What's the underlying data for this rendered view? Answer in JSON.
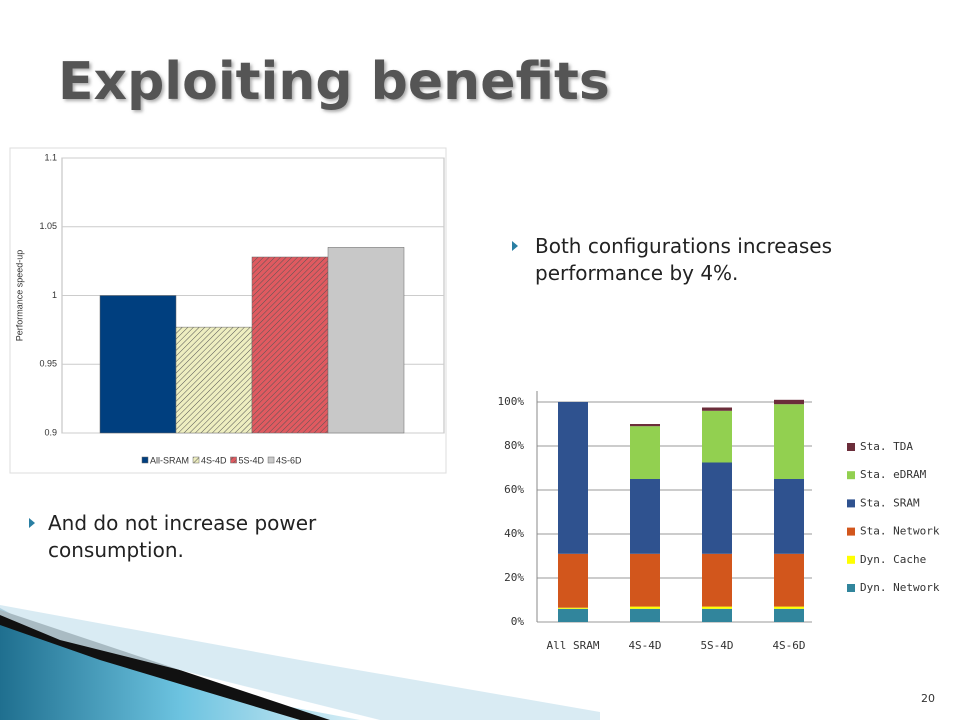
{
  "title": "Exploiting benefits",
  "bullets": [
    "Both configurations increases performance by 4%.",
    "And do not increase power consumption."
  ],
  "page_number": "20",
  "chart_data": [
    {
      "type": "bar",
      "ylabel": "Performance speed-up",
      "ylim": [
        0.9,
        1.1
      ],
      "yticks": [
        0.9,
        0.95,
        1,
        1.05,
        1.1
      ],
      "grid": true,
      "legend": "bottom",
      "series": [
        {
          "name": "All-SRAM",
          "color": "#003f7f",
          "values": [
            1.0
          ]
        },
        {
          "name": "4S-4D",
          "color": "#eeeec0",
          "pattern": "hatch",
          "values": [
            0.977
          ]
        },
        {
          "name": "5S-4D",
          "color": "#e05a60",
          "pattern": "hatch",
          "values": [
            1.028
          ]
        },
        {
          "name": "4S-6D",
          "color": "#c8c8c8",
          "values": [
            1.035
          ]
        }
      ]
    },
    {
      "type": "stacked_bar",
      "categories": [
        "All SRAM",
        "4S-4D",
        "5S-4D",
        "4S-6D"
      ],
      "ylim": [
        0,
        105
      ],
      "yticks": [
        {
          "value": 0,
          "label": "0%"
        },
        {
          "value": 20,
          "label": "20%"
        },
        {
          "value": 40,
          "label": "40%"
        },
        {
          "value": 60,
          "label": "60%"
        },
        {
          "value": 80,
          "label": "80%"
        },
        {
          "value": 100,
          "label": "100%"
        }
      ],
      "grid": true,
      "legend": "right",
      "series": [
        {
          "name": "Dyn. Network",
          "color": "#31859c",
          "values": [
            6,
            6,
            6,
            6
          ]
        },
        {
          "name": "Dyn. Cache",
          "color": "#ffff00",
          "values": [
            0.5,
            1,
            1,
            1
          ]
        },
        {
          "name": "Sta. Network",
          "color": "#d2561c",
          "values": [
            24.5,
            24,
            24,
            24
          ]
        },
        {
          "name": "Sta. SRAM",
          "color": "#2f528f",
          "values": [
            69,
            34,
            41.5,
            34
          ]
        },
        {
          "name": "Sta. eDRAM",
          "color": "#92d050",
          "values": [
            0,
            24,
            23.5,
            34
          ]
        },
        {
          "name": "Sta. TDA",
          "color": "#6b2d3a",
          "values": [
            0,
            1,
            1.5,
            2
          ]
        }
      ]
    }
  ]
}
